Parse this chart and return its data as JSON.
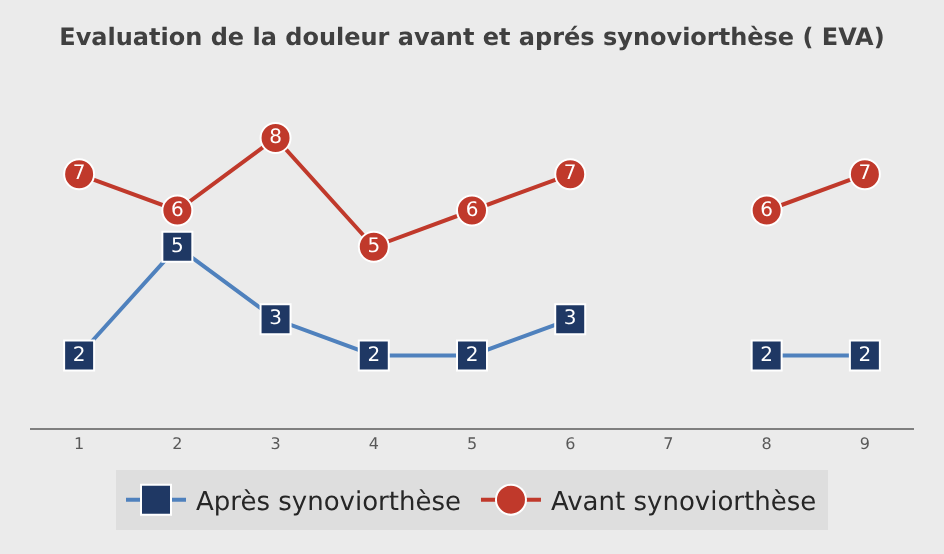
{
  "chart_data": {
    "type": "line",
    "title": "Evaluation de la douleur avant et aprés synoviorthèse ( EVA)",
    "categories": [
      "1",
      "2",
      "3",
      "4",
      "5",
      "6",
      "7",
      "8",
      "9"
    ],
    "series": [
      {
        "name": "Après synoviorthèse",
        "color": "#4f81bd",
        "colors": [
          "#1f3864",
          "#1f3864",
          "#1f3864",
          "#1f3864",
          "#1f3864",
          "#1f3864",
          "#1f3864",
          "#1f3864",
          "#1f3864"
        ],
        "marker": "square",
        "values": [
          2,
          5,
          3,
          2,
          2,
          3,
          null,
          2,
          2
        ]
      },
      {
        "name": "Avant synoviorthèse",
        "color": "#c0392b",
        "marker": "circle",
        "values": [
          7,
          6,
          8,
          5,
          6,
          7,
          null,
          6,
          7
        ]
      }
    ],
    "data_labels": true,
    "legend": "bottom",
    "grid": false,
    "tick_labels": "x"
  }
}
